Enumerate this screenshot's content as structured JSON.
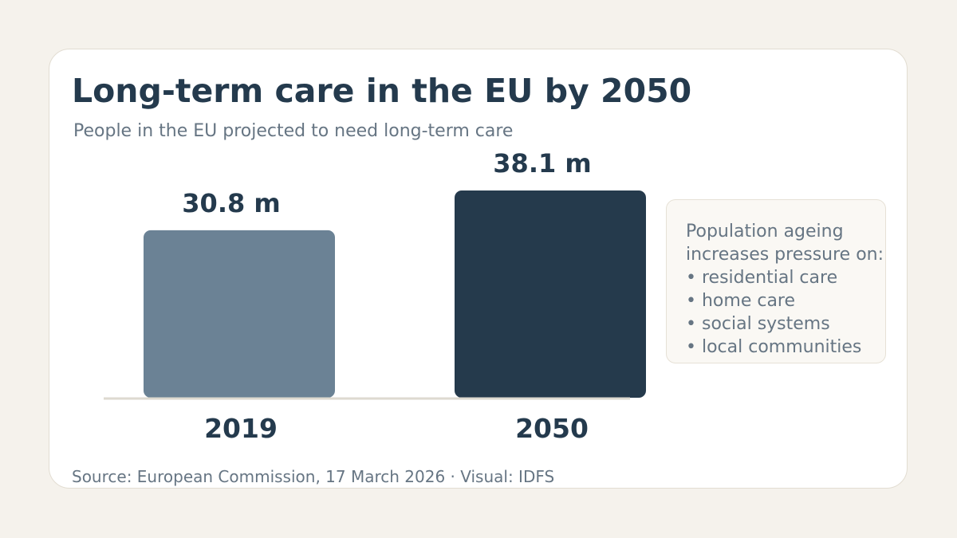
{
  "chart_data": {
    "type": "bar",
    "title": "Long-term care in the EU by 2050",
    "subtitle": "People in the EU projected to need long-term care",
    "categories": [
      "2019",
      "2050"
    ],
    "values": [
      30.8,
      38.1
    ],
    "value_labels": [
      "30.8 m",
      "38.1 m"
    ],
    "unit": "m",
    "bar_colors": [
      "#6b8295",
      "#253a4c"
    ],
    "baseline_color": "#dedad0",
    "grid": false,
    "ylim": [
      0,
      38.1
    ]
  },
  "note": {
    "heading_line1": "Population ageing",
    "heading_line2": "increases pressure on:",
    "items": [
      "residential care",
      "home care",
      "social systems",
      "local communities"
    ]
  },
  "source": "Source: European Commission, 17 March 2026 · Visual: IDFS",
  "colors": {
    "page_background": "#f5f2ec",
    "card_background": "#ffffff",
    "title": "#243a4d",
    "muted_text": "#667583"
  }
}
